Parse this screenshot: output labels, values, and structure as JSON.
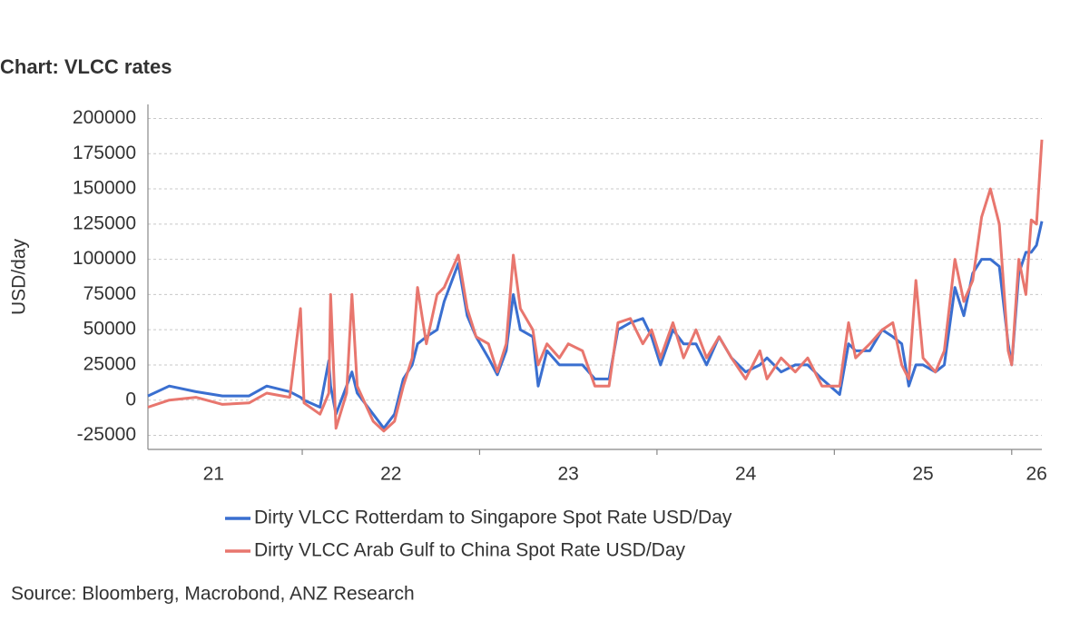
{
  "chart_data": {
    "type": "line",
    "title": "Chart: VLCC rates",
    "y_label": "USD/day",
    "source": "Source: Bloomberg, Macrobond, ANZ Research",
    "x": [
      2021.13,
      2021.25,
      2021.4,
      2021.55,
      2021.7,
      2021.8,
      2021.93,
      2021.99,
      2022.01,
      2022.1,
      2022.15,
      2022.16,
      2022.19,
      2022.25,
      2022.28,
      2022.31,
      2022.4,
      2022.46,
      2022.52,
      2022.57,
      2022.62,
      2022.65,
      2022.7,
      2022.76,
      2022.8,
      2022.88,
      2022.93,
      2022.98,
      2023.05,
      2023.1,
      2023.15,
      2023.19,
      2023.23,
      2023.3,
      2023.33,
      2023.38,
      2023.45,
      2023.5,
      2023.58,
      2023.65,
      2023.73,
      2023.78,
      2023.85,
      2023.92,
      2023.97,
      2024.02,
      2024.09,
      2024.15,
      2024.22,
      2024.28,
      2024.35,
      2024.42,
      2024.5,
      2024.58,
      2024.62,
      2024.7,
      2024.78,
      2024.85,
      2024.93,
      2025.03,
      2025.08,
      2025.12,
      2025.2,
      2025.27,
      2025.33,
      2025.38,
      2025.42,
      2025.46,
      2025.5,
      2025.57,
      2025.62,
      2025.68,
      2025.73,
      2025.78,
      2025.83,
      2025.88,
      2025.93,
      2025.98,
      2026.0,
      2026.04,
      2026.08,
      2026.11,
      2026.14,
      2026.17
    ],
    "series": [
      {
        "name": "Dirty VLCC Rotterdam to Singapore Spot Rate USD/Day",
        "color": "#3a6fd0",
        "values": [
          3000,
          10000,
          6000,
          3000,
          3000,
          10000,
          6000,
          2000,
          0,
          -5000,
          28000,
          10000,
          -10000,
          10000,
          20000,
          5000,
          -10000,
          -20000,
          -10000,
          15000,
          25000,
          40000,
          45000,
          50000,
          70000,
          97000,
          60000,
          45000,
          30000,
          18000,
          35000,
          75000,
          50000,
          45000,
          10000,
          35000,
          25000,
          25000,
          25000,
          15000,
          15000,
          50000,
          55000,
          58000,
          45000,
          25000,
          50000,
          40000,
          40000,
          25000,
          45000,
          30000,
          20000,
          25000,
          30000,
          20000,
          25000,
          25000,
          15000,
          4000,
          40000,
          35000,
          35000,
          50000,
          45000,
          40000,
          10000,
          25000,
          25000,
          20000,
          25000,
          80000,
          60000,
          90000,
          100000,
          100000,
          95000,
          40000,
          25000,
          90000,
          105000,
          105000,
          110000,
          127000
        ]
      },
      {
        "name": "Dirty VLCC Arab Gulf to China Spot Rate USD/Day",
        "color": "#e8766e",
        "values": [
          -5000,
          0,
          2000,
          -3000,
          -2000,
          5000,
          2000,
          65000,
          -2000,
          -10000,
          5000,
          75000,
          -20000,
          5000,
          75000,
          10000,
          -15000,
          -22000,
          -15000,
          10000,
          30000,
          80000,
          40000,
          75000,
          80000,
          103000,
          65000,
          45000,
          40000,
          20000,
          40000,
          103000,
          65000,
          50000,
          25000,
          40000,
          30000,
          40000,
          35000,
          10000,
          10000,
          55000,
          58000,
          40000,
          50000,
          30000,
          55000,
          30000,
          50000,
          30000,
          45000,
          30000,
          15000,
          35000,
          15000,
          30000,
          20000,
          30000,
          10000,
          10000,
          55000,
          30000,
          40000,
          50000,
          55000,
          25000,
          15000,
          85000,
          30000,
          20000,
          35000,
          100000,
          70000,
          85000,
          130000,
          150000,
          125000,
          35000,
          25000,
          100000,
          75000,
          128000,
          125000,
          185000
        ]
      }
    ],
    "xlim": [
      2021.13,
      2026.17
    ],
    "xticks": [
      {
        "value": 2021.5,
        "label": "21"
      },
      {
        "value": 2022.5,
        "label": "22"
      },
      {
        "value": 2023.5,
        "label": "23"
      },
      {
        "value": 2024.5,
        "label": "24"
      },
      {
        "value": 2025.5,
        "label": "25"
      },
      {
        "value": 2026.14,
        "label": "26"
      }
    ],
    "x_year_boundaries": [
      2022,
      2023,
      2024,
      2025,
      2026
    ],
    "ylim": [
      -35000,
      210000
    ],
    "yticks": [
      -25000,
      0,
      25000,
      50000,
      75000,
      100000,
      125000,
      150000,
      175000,
      200000
    ],
    "grid": true
  }
}
